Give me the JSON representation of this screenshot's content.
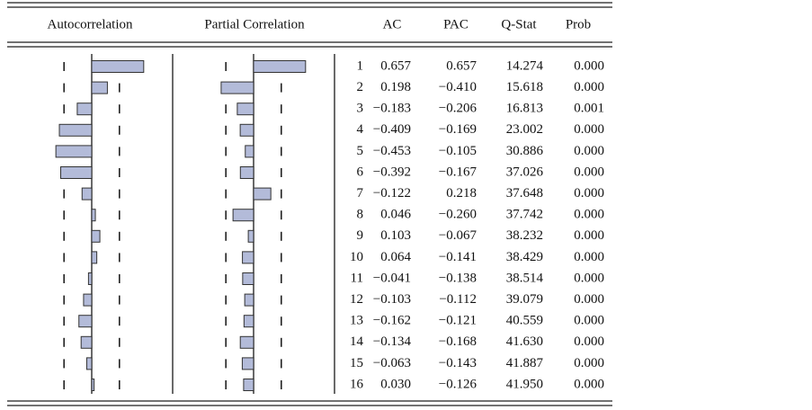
{
  "headers": [
    "Autocorrelation",
    "Partial Correlation",
    "AC",
    "PAC",
    "Q-Stat",
    "Prob"
  ],
  "lags": [
    1,
    2,
    3,
    4,
    5,
    6,
    7,
    8,
    9,
    10,
    11,
    12,
    13,
    14,
    15,
    16
  ],
  "ac": {
    "values": [
      0.657,
      0.198,
      -0.183,
      -0.409,
      -0.453,
      -0.392,
      -0.122,
      0.046,
      0.103,
      0.064,
      -0.041,
      -0.103,
      -0.162,
      -0.134,
      -0.063,
      0.03
    ],
    "value_labels": [
      "0.657",
      "0.198",
      "−0.183",
      "−0.409",
      "−0.453",
      "−0.392",
      "−0.122",
      "0.046",
      "0.103",
      "0.064",
      "−0.041",
      "−0.103",
      "−0.162",
      "−0.134",
      "−0.063",
      "0.030"
    ]
  },
  "pac": {
    "values": [
      0.657,
      -0.41,
      -0.206,
      -0.169,
      -0.105,
      -0.167,
      0.218,
      -0.26,
      -0.067,
      -0.141,
      -0.138,
      -0.112,
      -0.121,
      -0.168,
      -0.143,
      -0.126
    ],
    "value_labels": [
      "0.657",
      "−0.410",
      "−0.206",
      "−0.169",
      "−0.105",
      "−0.167",
      "0.218",
      "−0.260",
      "−0.067",
      "−0.141",
      "−0.138",
      "−0.112",
      "−0.121",
      "−0.168",
      "−0.143",
      "−0.126"
    ]
  },
  "q_stat": {
    "values": [
      14.274,
      15.618,
      16.813,
      23.002,
      30.886,
      37.026,
      37.648,
      37.742,
      38.232,
      38.429,
      38.514,
      39.079,
      40.559,
      41.63,
      41.887,
      41.95
    ],
    "value_labels": [
      "14.274",
      "15.618",
      "16.813",
      "23.002",
      "30.886",
      "37.026",
      "37.648",
      "37.742",
      "38.232",
      "38.429",
      "38.514",
      "39.079",
      "40.559",
      "41.630",
      "41.887",
      "41.950"
    ]
  },
  "prob": {
    "values": [
      0,
      0,
      0.001,
      0,
      0,
      0,
      0,
      0,
      0,
      0,
      0,
      0,
      0,
      0,
      0,
      0
    ],
    "value_labels": [
      "0.000",
      "0.000",
      "0.001",
      "0.000",
      "0.000",
      "0.000",
      "0.000",
      "0.000",
      "0.000",
      "0.000",
      "0.000",
      "0.000",
      "0.000",
      "0.000",
      "0.000",
      "0.000"
    ]
  },
  "bounds": [
    -0.35,
    0.35
  ]
}
